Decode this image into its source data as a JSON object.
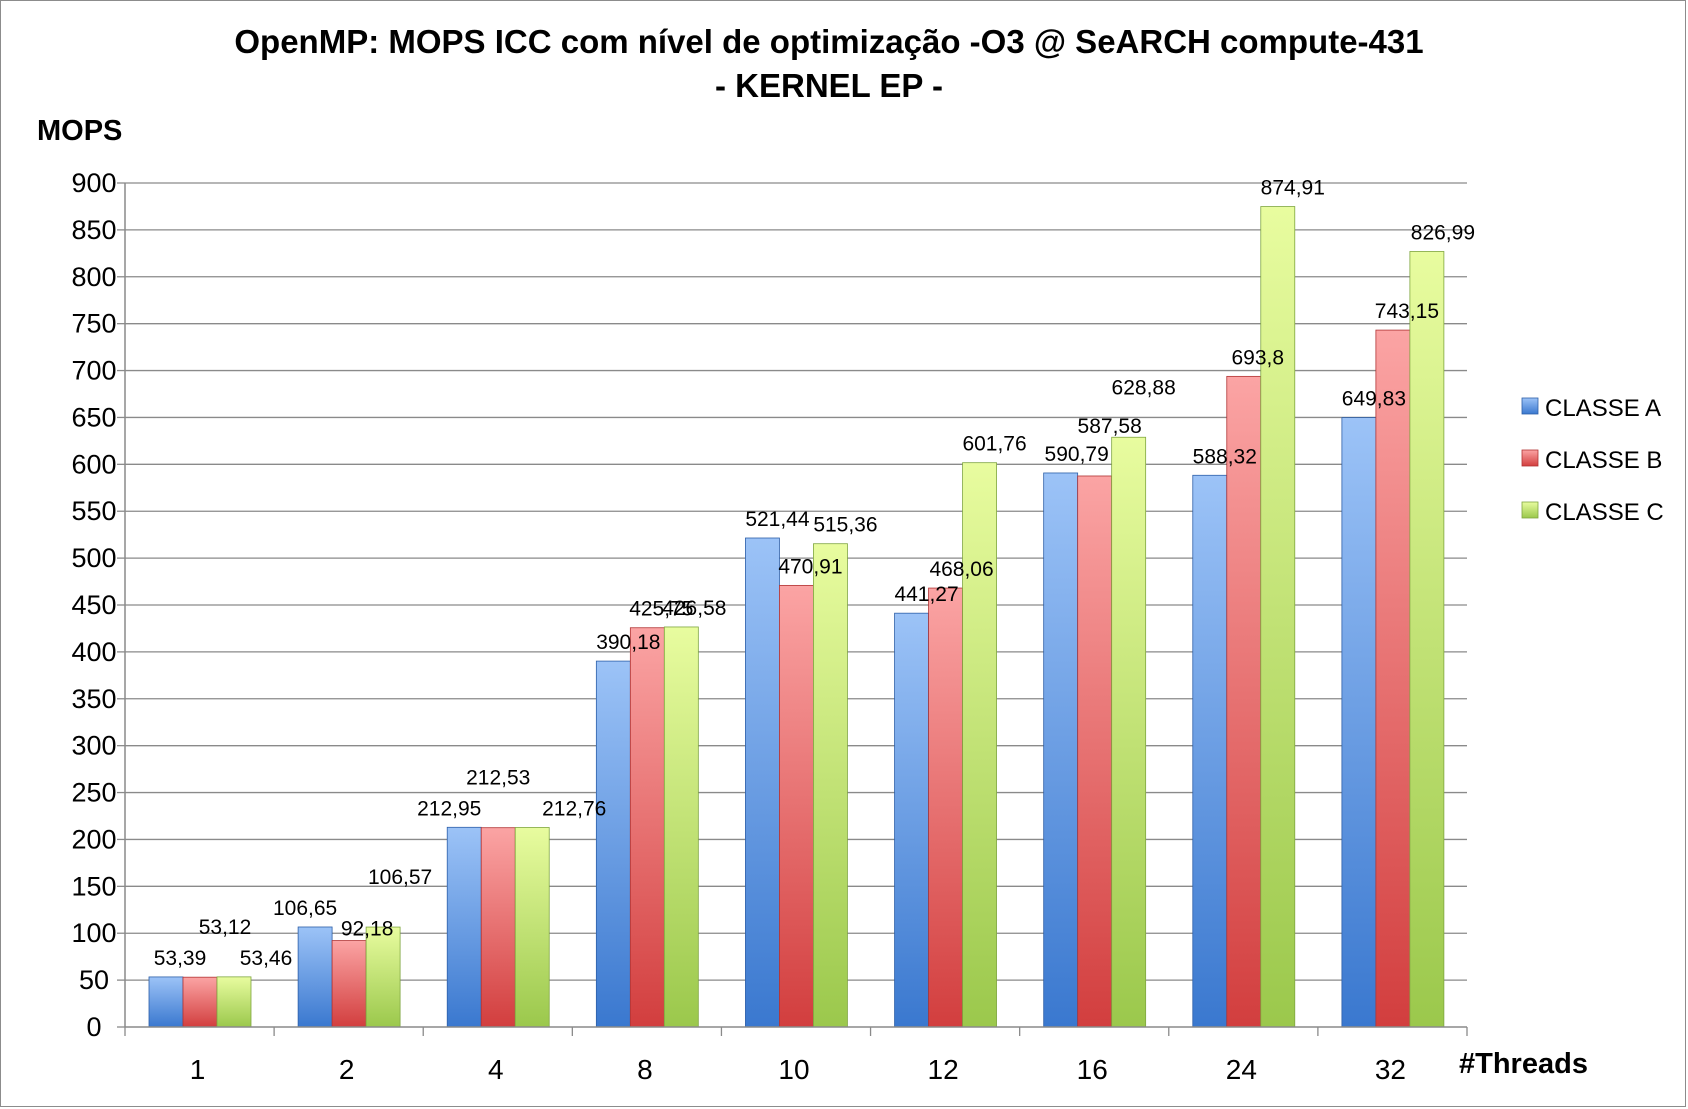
{
  "chart_data": {
    "type": "bar",
    "title": "OpenMP: MOPS ICC com nível de optimização -O3 @ SeARCH compute-431",
    "subtitle": "- KERNEL EP -",
    "ylabel": "MOPS",
    "xlabel": "#Threads",
    "categories": [
      "1",
      "2",
      "4",
      "8",
      "10",
      "12",
      "16",
      "24",
      "32"
    ],
    "ylim": [
      0,
      900
    ],
    "yticks": [
      0,
      50,
      100,
      150,
      200,
      250,
      300,
      350,
      400,
      450,
      500,
      550,
      600,
      650,
      700,
      750,
      800,
      850,
      900
    ],
    "grid": true,
    "legend_position": "right",
    "series": [
      {
        "name": "CLASSE A",
        "color": "#4a86d6",
        "values": [
          53.39,
          106.65,
          212.95,
          390.18,
          521.44,
          441.27,
          590.79,
          588.32,
          649.83
        ],
        "labels": [
          "53,39",
          "106,65",
          "212,95",
          "390,18",
          "521,44",
          "441,27",
          "590,79",
          "588,32",
          "649,83"
        ]
      },
      {
        "name": "CLASSE B",
        "color": "#e05a5a",
        "values": [
          53.12,
          92.18,
          212.53,
          425.75,
          470.91,
          468.06,
          587.58,
          693.8,
          743.15
        ],
        "labels": [
          "53,12",
          "92,18",
          "212,53",
          "425,75",
          "470,91",
          "468,06",
          "587,58",
          "693,8",
          "743,15"
        ]
      },
      {
        "name": "CLASSE C",
        "color": "#a8d45a",
        "values": [
          53.46,
          106.57,
          212.76,
          426.58,
          515.36,
          601.76,
          628.88,
          874.91,
          826.99
        ],
        "labels": [
          "53,46",
          "106,57",
          "212,76",
          "426,58",
          "515,36",
          "601,76",
          "628,88",
          "874,91",
          "826,99"
        ]
      }
    ]
  }
}
